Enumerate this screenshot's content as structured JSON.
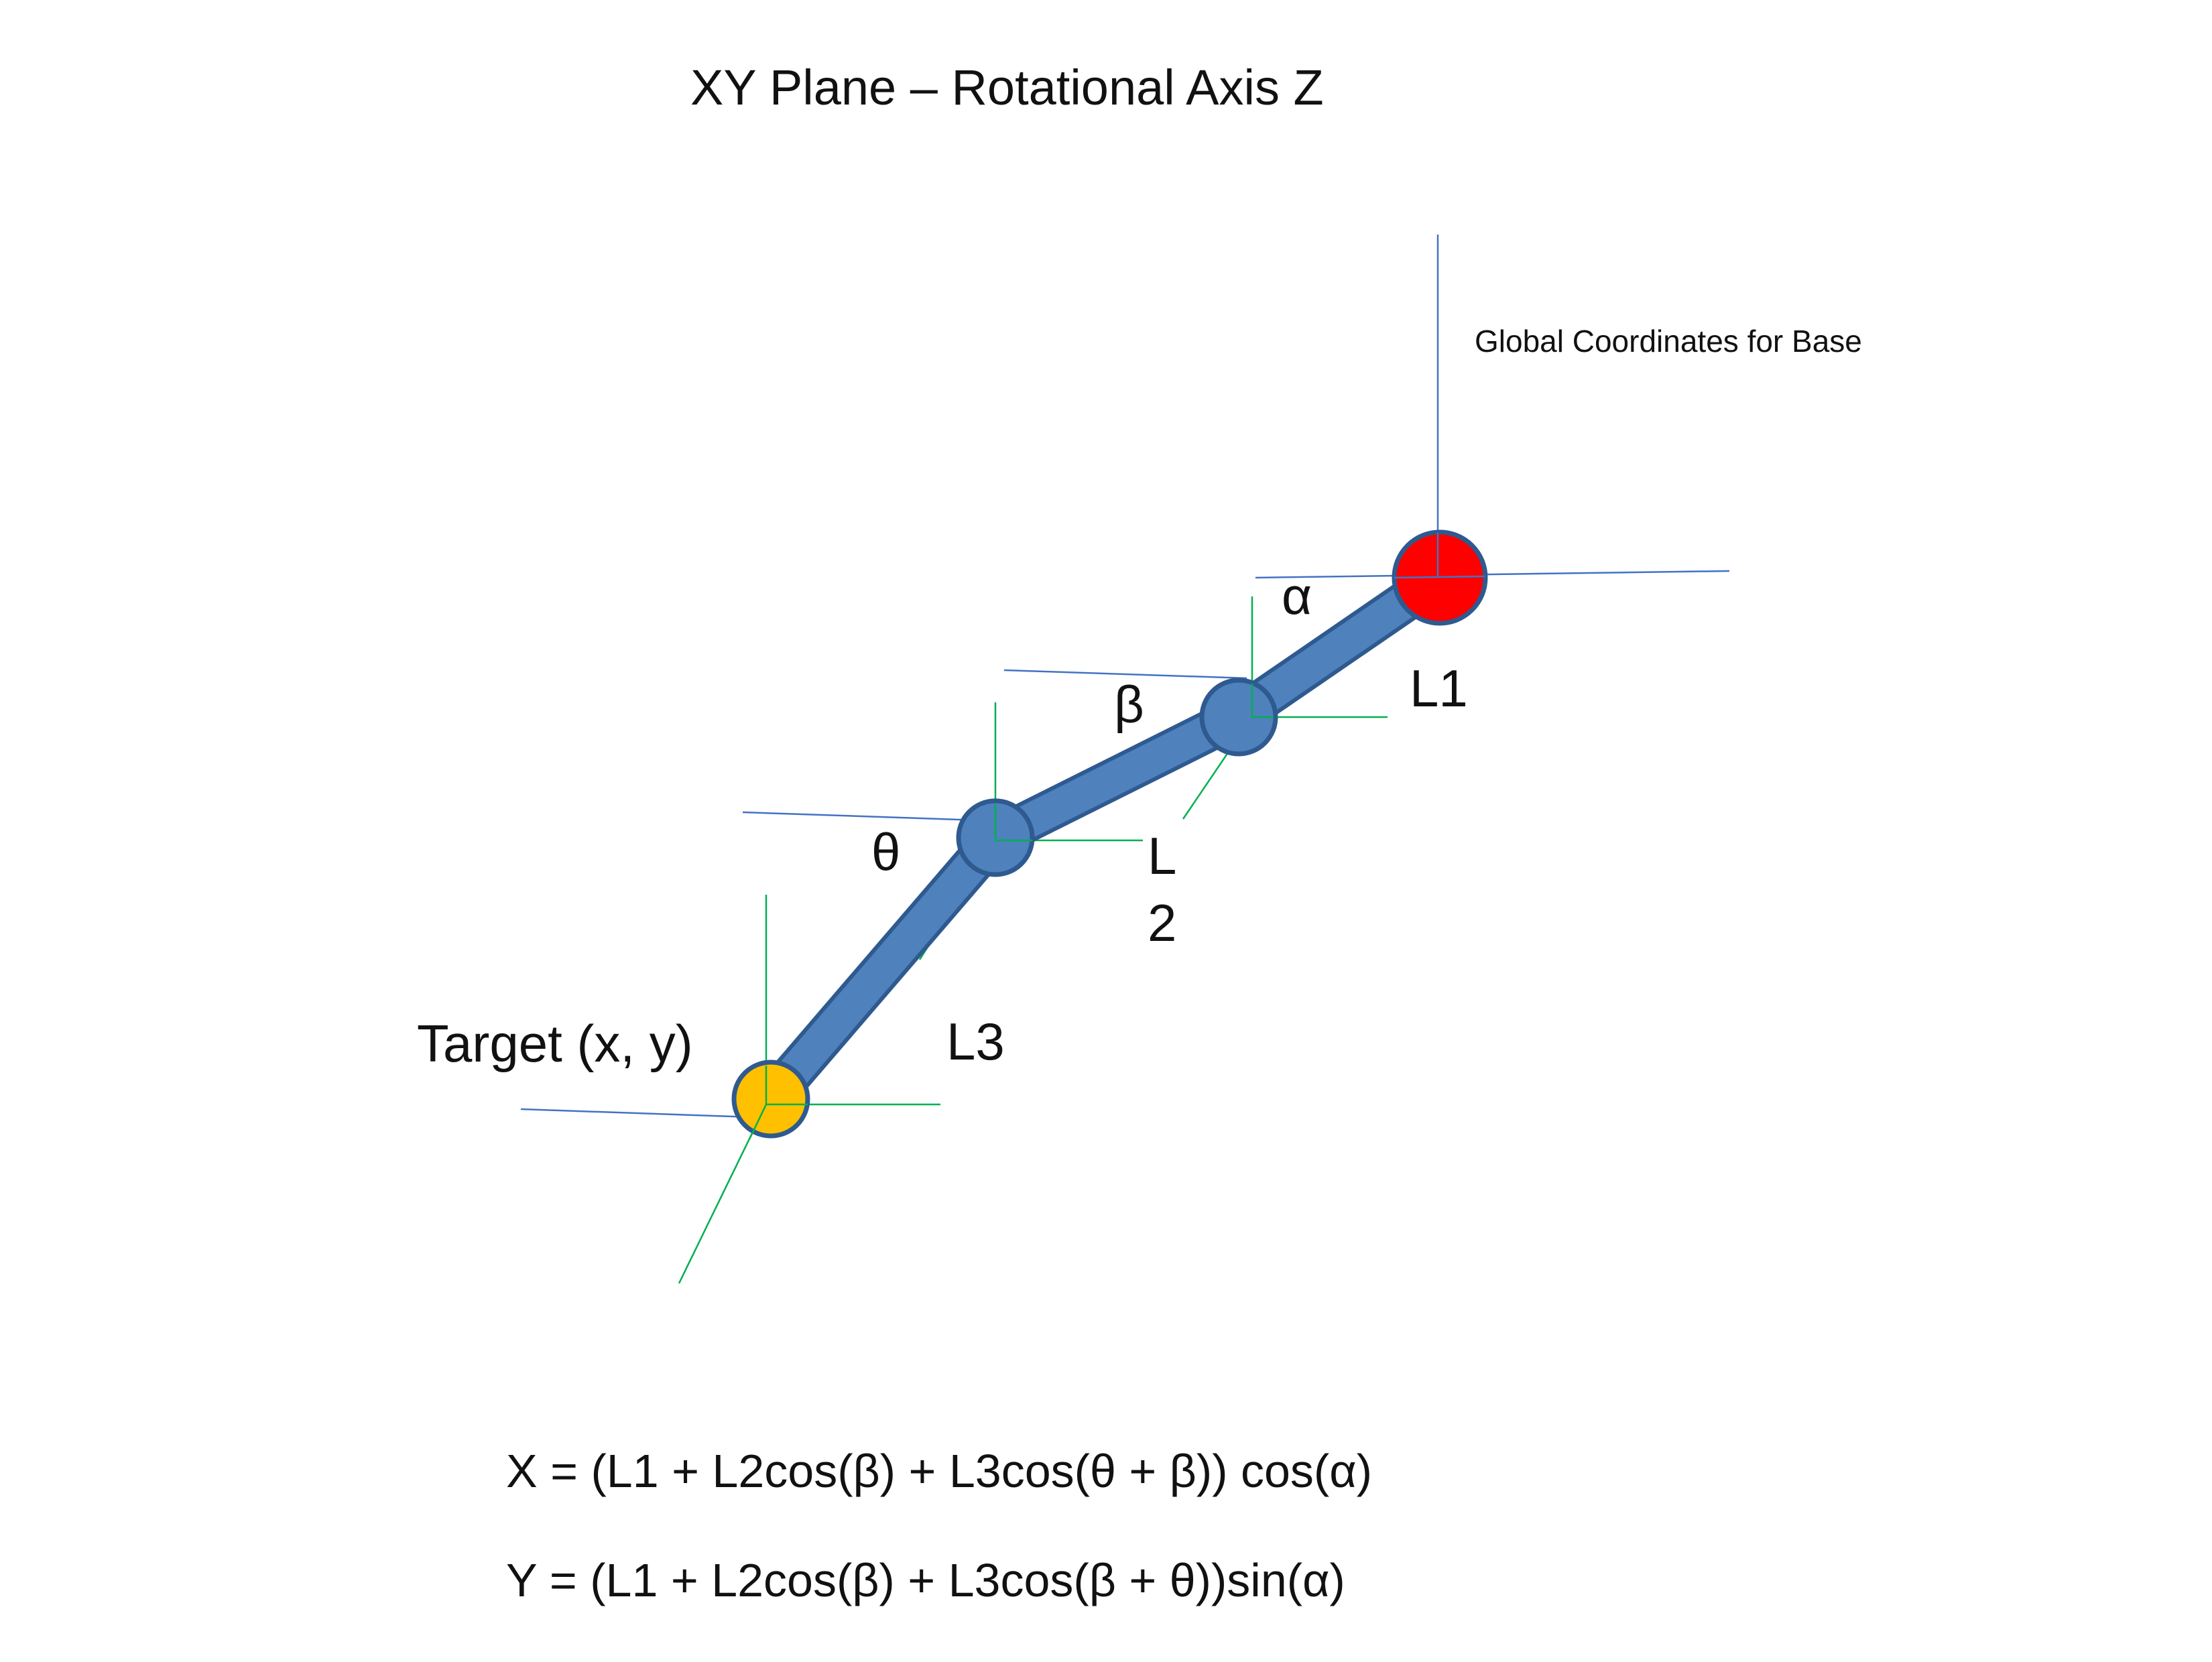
{
  "title": "XY Plane – Rotational Axis Z",
  "base_note": "Global Coordinates for Base",
  "labels": {
    "alpha": "α",
    "beta": "β",
    "theta": "θ",
    "l1": "L1",
    "l2_line1": "L",
    "l2_line2": "2",
    "l3": "L3",
    "target": "Target (x, y)"
  },
  "equations": {
    "x": "X = (L1 + L2cos(β) + L3cos(θ + β)) cos(α)",
    "y": "Y = (L1 + L2cos(β) + L3cos(β + θ))sin(α)"
  },
  "colors": {
    "arm": "#4f81bd",
    "arm_outline": "#2e5a8f",
    "base_joint": "#ff0000",
    "target_joint": "#ffc000",
    "global_axis": "#4472c4",
    "local_axis": "#00b050"
  }
}
